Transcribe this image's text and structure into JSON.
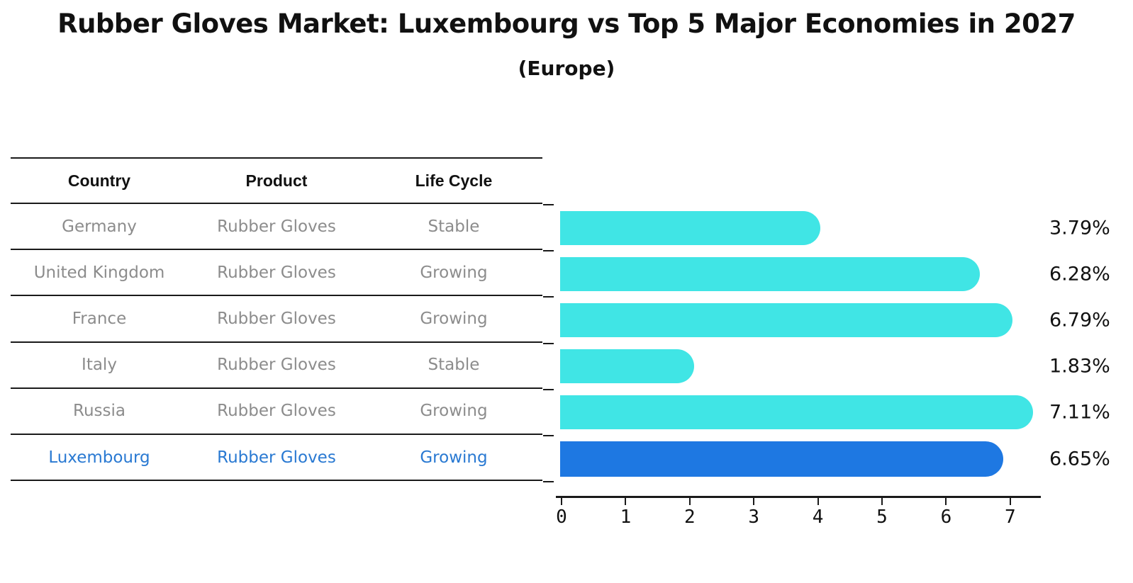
{
  "title": "Rubber Gloves Market: Luxembourg vs Top 5 Major Economies in 2027",
  "subtitle": "(Europe)",
  "table": {
    "headers": [
      "Country",
      "Product",
      "Life Cycle"
    ],
    "rows": [
      {
        "country": "Germany",
        "product": "Rubber Gloves",
        "life_cycle": "Stable",
        "highlight": false
      },
      {
        "country": "United Kingdom",
        "product": "Rubber Gloves",
        "life_cycle": "Growing",
        "highlight": false
      },
      {
        "country": "France",
        "product": "Rubber Gloves",
        "life_cycle": "Growing",
        "highlight": false
      },
      {
        "country": "Italy",
        "product": "Rubber Gloves",
        "life_cycle": "Stable",
        "highlight": false
      },
      {
        "country": "Russia",
        "product": "Rubber Gloves",
        "life_cycle": "Growing",
        "highlight": false
      },
      {
        "country": "Luxembourg",
        "product": "Rubber Gloves",
        "life_cycle": "Growing",
        "highlight": true
      }
    ]
  },
  "chart_data": {
    "type": "bar",
    "orientation": "horizontal",
    "title": "Rubber Gloves Market: Luxembourg vs Top 5 Major Economies in 2027",
    "subtitle": "(Europe)",
    "categories": [
      "Germany",
      "United Kingdom",
      "France",
      "Italy",
      "Russia",
      "Luxembourg"
    ],
    "values": [
      3.79,
      6.28,
      6.79,
      1.83,
      7.11,
      6.65
    ],
    "labels": [
      "3.79%",
      "6.28%",
      "6.79%",
      "1.83%",
      "7.11%",
      "6.65%"
    ],
    "x_ticks": [
      0,
      1,
      2,
      3,
      4,
      5,
      6,
      7
    ],
    "xlim": [
      0,
      7.5
    ],
    "xlabel": "",
    "ylabel": "",
    "grid": false,
    "legend": false,
    "bar_color": "#40e5e5",
    "highlight_color": "#1e78e2",
    "highlight_index": 5,
    "highlight_text_color": "#2979d2",
    "axis_color": "#1a1a1a",
    "muted_text_color": "#8c8c8c"
  }
}
